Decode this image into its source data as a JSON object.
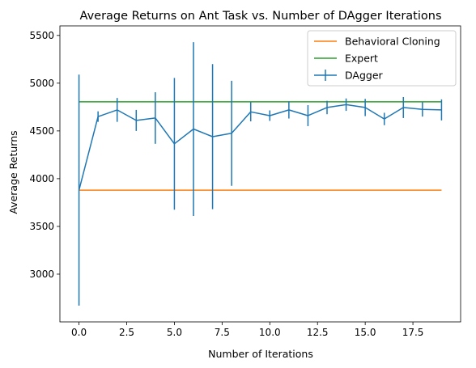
{
  "chart_data": {
    "type": "line",
    "title": "Average Returns on Ant Task vs. Number of DAgger Iterations",
    "xlabel": "Number of Iterations",
    "ylabel": "Average Returns",
    "xlim": [
      -1.0,
      20.0
    ],
    "ylim": [
      2500,
      5600
    ],
    "xticks": [
      0.0,
      2.5,
      5.0,
      7.5,
      10.0,
      12.5,
      15.0,
      17.5
    ],
    "xtick_labels": [
      "0.0",
      "2.5",
      "5.0",
      "7.5",
      "10.0",
      "12.5",
      "15.0",
      "17.5"
    ],
    "yticks": [
      3000,
      3500,
      4000,
      4500,
      5000,
      5500
    ],
    "ytick_labels": [
      "3000",
      "3500",
      "4000",
      "4500",
      "5000",
      "5500"
    ],
    "grid": false,
    "legend_position": "top-right",
    "series": [
      {
        "name": "Behavioral Cloning",
        "kind": "hline",
        "color": "#ff7f0e",
        "x": [
          0,
          19
        ],
        "y": [
          3880,
          3880
        ]
      },
      {
        "name": "Expert",
        "kind": "hline",
        "color": "#2ca02c",
        "x": [
          0,
          19
        ],
        "y": [
          4805,
          4805
        ]
      },
      {
        "name": "DAgger",
        "kind": "errorbar",
        "color": "#1f77b4",
        "x": [
          0,
          1,
          2,
          3,
          4,
          5,
          6,
          7,
          8,
          9,
          10,
          11,
          12,
          13,
          14,
          15,
          16,
          17,
          18,
          19
        ],
        "y": [
          3880,
          4650,
          4720,
          4610,
          4635,
          4365,
          4520,
          4440,
          4475,
          4700,
          4660,
          4720,
          4660,
          4745,
          4775,
          4745,
          4625,
          4745,
          4725,
          4720
        ],
        "yerr": [
          1210,
          55,
          125,
          110,
          270,
          690,
          910,
          760,
          550,
          100,
          55,
          90,
          110,
          70,
          65,
          90,
          65,
          110,
          75,
          110
        ]
      }
    ]
  }
}
